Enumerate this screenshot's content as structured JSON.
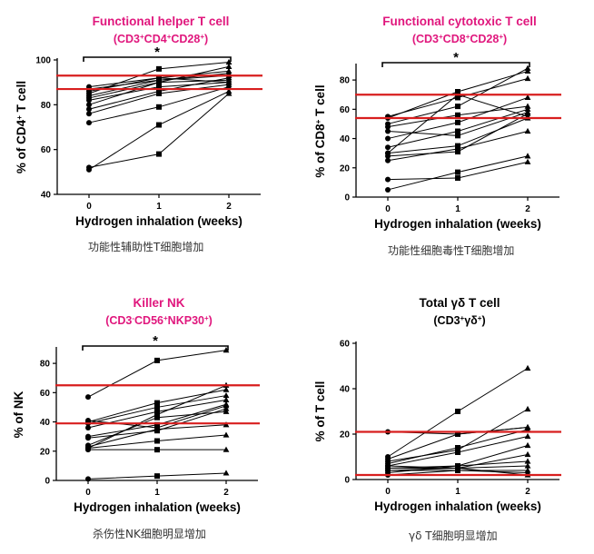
{
  "colors": {
    "title_pink": "#e0177d",
    "ref_red": "#d81e1e",
    "ink": "#000000",
    "caption": "#333333"
  },
  "chart_data": [
    {
      "type": "line",
      "title": "Functional helper T cell",
      "subtitle": {
        "base": "(CD3",
        "sups": [
          "+",
          "+",
          "+"
        ],
        "parts": [
          "CD4",
          "CD28"
        ],
        "close": ")"
      },
      "title_color": "#e0177d",
      "xlabel": "Hydrogen inhalation (weeks)",
      "ylabel": {
        "base": "% of CD4",
        "sup": "+",
        "tail": " T cell"
      },
      "x": [
        0,
        1,
        2
      ],
      "xticks": [
        "0",
        "1",
        "2"
      ],
      "ylim": [
        40,
        100
      ],
      "yticks": [
        40,
        60,
        80,
        100
      ],
      "ref_lines": [
        93,
        87
      ],
      "significance": "*",
      "series": [
        [
          52,
          58,
          85
        ],
        [
          51,
          71,
          86
        ],
        [
          72,
          79,
          88
        ],
        [
          78,
          86,
          92
        ],
        [
          76,
          85,
          89
        ],
        [
          80,
          90,
          91
        ],
        [
          82,
          88,
          90
        ],
        [
          83,
          90,
          97
        ],
        [
          84,
          91,
          93
        ],
        [
          85,
          96,
          99
        ],
        [
          86,
          92,
          90
        ],
        [
          87,
          91,
          94
        ],
        [
          88,
          92,
          95
        ]
      ],
      "caption": "功能性辅助性T细胞增加"
    },
    {
      "type": "line",
      "title": "Functional cytotoxic T cell",
      "subtitle": {
        "base": "(CD3",
        "sups": [
          "+",
          "+",
          "+"
        ],
        "parts": [
          "CD8",
          "CD28"
        ],
        "close": ")"
      },
      "title_color": "#e0177d",
      "xlabel": "Hydrogen inhalation (weeks)",
      "ylabel": {
        "base": "% of CD8",
        "sup": "+",
        "tail": " T cell"
      },
      "x": [
        0,
        1,
        2
      ],
      "xticks": [
        "0",
        "1",
        "2"
      ],
      "ylim": [
        0,
        90
      ],
      "yticks": [
        0,
        20,
        40,
        60,
        80
      ],
      "ref_lines": [
        70,
        54
      ],
      "significance": "*",
      "series": [
        [
          5,
          17,
          28
        ],
        [
          12,
          13,
          24
        ],
        [
          25,
          33,
          45
        ],
        [
          28,
          31,
          57
        ],
        [
          30,
          35,
          54
        ],
        [
          34,
          45,
          60
        ],
        [
          40,
          51,
          68
        ],
        [
          45,
          42,
          58
        ],
        [
          48,
          56,
          62
        ],
        [
          50,
          62,
          88
        ],
        [
          54,
          72,
          86
        ],
        [
          55,
          68,
          81
        ],
        [
          30,
          70,
          55
        ]
      ],
      "caption": "功能性细胞毒性T细胞增加"
    },
    {
      "type": "line",
      "title": "Killer NK",
      "subtitle": {
        "base": "(CD3",
        "sups": [
          "-",
          "+",
          "+"
        ],
        "parts": [
          "CD56",
          "NKP30"
        ],
        "close": ")"
      },
      "title_color": "#e0177d",
      "xlabel": "Hydrogen inhalation (weeks)",
      "ylabel": {
        "base": "% of NK",
        "sup": "",
        "tail": ""
      },
      "x": [
        0,
        1,
        2
      ],
      "xticks": [
        "0",
        "1",
        "2"
      ],
      "ylim": [
        0,
        90
      ],
      "yticks": [
        0,
        20,
        40,
        60,
        80
      ],
      "ref_lines": [
        65,
        39
      ],
      "significance": "*",
      "series": [
        [
          1,
          3,
          5
        ],
        [
          21,
          21,
          21
        ],
        [
          22,
          27,
          31
        ],
        [
          23,
          35,
          38
        ],
        [
          24,
          43,
          47
        ],
        [
          29,
          34,
          49
        ],
        [
          30,
          38,
          52
        ],
        [
          36,
          47,
          55
        ],
        [
          39,
          50,
          58
        ],
        [
          40,
          53,
          62
        ],
        [
          41,
          36,
          51
        ],
        [
          57,
          82,
          89
        ],
        [
          22,
          45,
          65
        ]
      ],
      "caption": "杀伤性NK细胞明显增加"
    },
    {
      "type": "line",
      "title": "Total γδ T cell",
      "subtitle": {
        "base": "(CD3",
        "sups": [
          "+",
          "+"
        ],
        "parts": [
          "γδ"
        ],
        "close": ")"
      },
      "title_color": "#000000",
      "xlabel": "Hydrogen inhalation (weeks)",
      "ylabel": {
        "base": "% of T cell",
        "sup": "",
        "tail": ""
      },
      "x": [
        0,
        1,
        2
      ],
      "xticks": [
        "0",
        "1",
        "2"
      ],
      "ylim": [
        0,
        60
      ],
      "yticks": [
        0,
        20,
        40,
        60
      ],
      "ref_lines": [
        21,
        2
      ],
      "significance": "",
      "series": [
        [
          21,
          20,
          23
        ],
        [
          10,
          30,
          49
        ],
        [
          8,
          13,
          31
        ],
        [
          7,
          14,
          22
        ],
        [
          6,
          12,
          19
        ],
        [
          5,
          6,
          15
        ],
        [
          4,
          5,
          11
        ],
        [
          3,
          6,
          8
        ],
        [
          2,
          4,
          4
        ],
        [
          5,
          5,
          6
        ],
        [
          9,
          20,
          23
        ],
        [
          6,
          5,
          2
        ],
        [
          4,
          4,
          3
        ]
      ],
      "caption": "γδ T细胞明显增加"
    }
  ]
}
